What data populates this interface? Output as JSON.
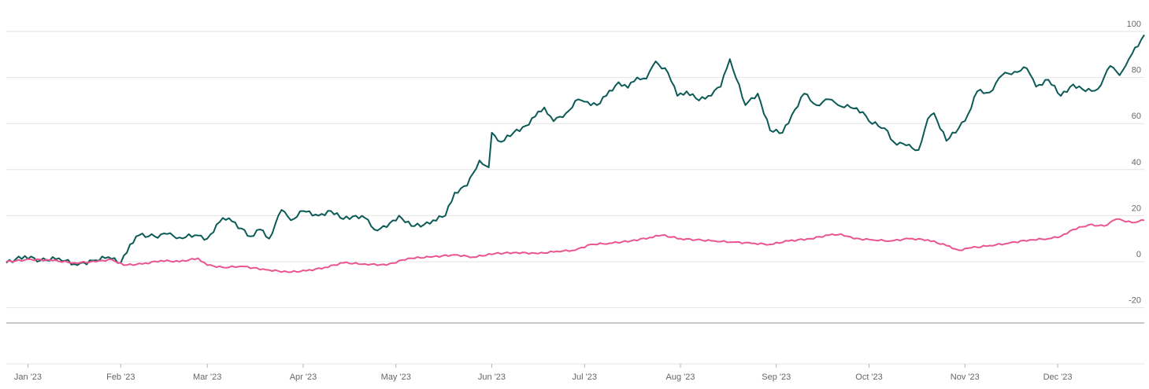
{
  "chart_data": {
    "type": "line",
    "title": "",
    "xlabel": "",
    "ylabel": "",
    "ylim": [
      -20,
      100
    ],
    "yticks": [
      100,
      80,
      60,
      40,
      20,
      0,
      -20
    ],
    "grid": true,
    "legend": "none",
    "x_tick_labels": [
      "Jan '23",
      "Feb '23",
      "Mar '23",
      "Apr '23",
      "May '23",
      "Jun '23",
      "Jul '23",
      "Aug '23",
      "Sep '23",
      "Oct '23",
      "Nov '23",
      "Dec '23"
    ],
    "x_tick_dates": [
      "2023-01-02",
      "2023-02-01",
      "2023-03-01",
      "2023-04-01",
      "2023-05-01",
      "2023-06-01",
      "2023-07-01",
      "2023-08-01",
      "2023-09-01",
      "2023-10-01",
      "2023-11-01",
      "2023-12-01"
    ],
    "x_range": [
      "2022-12-26",
      "2023-12-29"
    ],
    "series": [
      {
        "color": "#0b5a55",
        "points": [
          [
            "2022-12-26",
            -0.5
          ],
          [
            "2023-01-01",
            2.5
          ],
          [
            "2023-01-06",
            0.5
          ],
          [
            "2023-01-12",
            1.5
          ],
          [
            "2023-01-18",
            -1.5
          ],
          [
            "2023-01-23",
            0.5
          ],
          [
            "2023-01-28",
            2
          ],
          [
            "2023-02-01",
            -0.5
          ],
          [
            "2023-02-04",
            7.5
          ],
          [
            "2023-02-07",
            11.5
          ],
          [
            "2023-02-12",
            11
          ],
          [
            "2023-02-16",
            12
          ],
          [
            "2023-02-20",
            10.5
          ],
          [
            "2023-02-25",
            11.5
          ],
          [
            "2023-03-01",
            10
          ],
          [
            "2023-03-06",
            19
          ],
          [
            "2023-03-09",
            17.5
          ],
          [
            "2023-03-15",
            11
          ],
          [
            "2023-03-18",
            14
          ],
          [
            "2023-03-21",
            10
          ],
          [
            "2023-03-25",
            22.5
          ],
          [
            "2023-03-28",
            18
          ],
          [
            "2023-04-01",
            22
          ],
          [
            "2023-04-06",
            20
          ],
          [
            "2023-04-10",
            22
          ],
          [
            "2023-04-14",
            18.5
          ],
          [
            "2023-04-18",
            20
          ],
          [
            "2023-04-21",
            19
          ],
          [
            "2023-04-24",
            14
          ],
          [
            "2023-04-28",
            15
          ],
          [
            "2023-05-02",
            20
          ],
          [
            "2023-05-06",
            15.5
          ],
          [
            "2023-05-10",
            16
          ],
          [
            "2023-05-13",
            18
          ],
          [
            "2023-05-17",
            20
          ],
          [
            "2023-05-20",
            30
          ],
          [
            "2023-05-24",
            33
          ],
          [
            "2023-05-28",
            44
          ],
          [
            "2023-05-31",
            41
          ],
          [
            "2023-06-01",
            56
          ],
          [
            "2023-06-04",
            52
          ],
          [
            "2023-06-08",
            56
          ],
          [
            "2023-06-12",
            59
          ],
          [
            "2023-06-15",
            63
          ],
          [
            "2023-06-18",
            67
          ],
          [
            "2023-06-21",
            61
          ],
          [
            "2023-06-25",
            64.5
          ],
          [
            "2023-06-29",
            70.5
          ],
          [
            "2023-07-01",
            69.5
          ],
          [
            "2023-07-05",
            68
          ],
          [
            "2023-07-08",
            72
          ],
          [
            "2023-07-12",
            78
          ],
          [
            "2023-07-15",
            75.5
          ],
          [
            "2023-07-18",
            80
          ],
          [
            "2023-07-21",
            79.5
          ],
          [
            "2023-07-24",
            87
          ],
          [
            "2023-07-28",
            82
          ],
          [
            "2023-07-31",
            72
          ],
          [
            "2023-08-03",
            74
          ],
          [
            "2023-08-07",
            70
          ],
          [
            "2023-08-10",
            72
          ],
          [
            "2023-08-14",
            76
          ],
          [
            "2023-08-17",
            88
          ],
          [
            "2023-08-22",
            68
          ],
          [
            "2023-08-26",
            73
          ],
          [
            "2023-08-30",
            57
          ],
          [
            "2023-09-03",
            56
          ],
          [
            "2023-09-07",
            66
          ],
          [
            "2023-09-10",
            73
          ],
          [
            "2023-09-14",
            68
          ],
          [
            "2023-09-18",
            70.5
          ],
          [
            "2023-09-21",
            68
          ],
          [
            "2023-09-25",
            67
          ],
          [
            "2023-09-29",
            65
          ],
          [
            "2023-10-01",
            61
          ],
          [
            "2023-10-06",
            58
          ],
          [
            "2023-10-09",
            52
          ],
          [
            "2023-10-13",
            50.5
          ],
          [
            "2023-10-17",
            48.5
          ],
          [
            "2023-10-20",
            62
          ],
          [
            "2023-10-22",
            64.5
          ],
          [
            "2023-10-26",
            52.5
          ],
          [
            "2023-10-30",
            58
          ],
          [
            "2023-11-02",
            64
          ],
          [
            "2023-11-05",
            74
          ],
          [
            "2023-11-09",
            73.5
          ],
          [
            "2023-11-13",
            81
          ],
          [
            "2023-11-17",
            82.5
          ],
          [
            "2023-11-21",
            84
          ],
          [
            "2023-11-24",
            76
          ],
          [
            "2023-11-28",
            79
          ],
          [
            "2023-12-02",
            72
          ],
          [
            "2023-12-06",
            77
          ],
          [
            "2023-12-10",
            74
          ],
          [
            "2023-12-14",
            75
          ],
          [
            "2023-12-18",
            85
          ],
          [
            "2023-12-21",
            81
          ],
          [
            "2023-12-24",
            88
          ],
          [
            "2023-12-29",
            98.5
          ]
        ]
      },
      {
        "color": "#e8558f",
        "points": [
          [
            "2022-12-26",
            0
          ],
          [
            "2023-01-03",
            1
          ],
          [
            "2023-01-10",
            0.5
          ],
          [
            "2023-01-17",
            -0.5
          ],
          [
            "2023-01-24",
            0
          ],
          [
            "2023-01-29",
            1
          ],
          [
            "2023-02-02",
            -1.5
          ],
          [
            "2023-02-08",
            -1
          ],
          [
            "2023-02-14",
            0.5
          ],
          [
            "2023-02-20",
            0
          ],
          [
            "2023-02-26",
            1.5
          ],
          [
            "2023-03-01",
            -1.5
          ],
          [
            "2023-03-06",
            -2.5
          ],
          [
            "2023-03-12",
            -2
          ],
          [
            "2023-03-20",
            -3.5
          ],
          [
            "2023-03-27",
            -4.5
          ],
          [
            "2023-04-02",
            -4
          ],
          [
            "2023-04-08",
            -2.5
          ],
          [
            "2023-04-14",
            -0.5
          ],
          [
            "2023-04-21",
            -1
          ],
          [
            "2023-04-28",
            -1.5
          ],
          [
            "2023-05-05",
            1.5
          ],
          [
            "2023-05-12",
            2
          ],
          [
            "2023-05-20",
            3
          ],
          [
            "2023-05-26",
            2
          ],
          [
            "2023-06-02",
            3.5
          ],
          [
            "2023-06-09",
            4
          ],
          [
            "2023-06-16",
            3.5
          ],
          [
            "2023-06-22",
            4.5
          ],
          [
            "2023-06-28",
            5
          ],
          [
            "2023-07-03",
            7.5
          ],
          [
            "2023-07-09",
            8
          ],
          [
            "2023-07-16",
            9
          ],
          [
            "2023-07-22",
            10.5
          ],
          [
            "2023-07-26",
            11.5
          ],
          [
            "2023-08-01",
            10
          ],
          [
            "2023-08-06",
            9.5
          ],
          [
            "2023-08-12",
            9
          ],
          [
            "2023-08-18",
            8.5
          ],
          [
            "2023-08-24",
            8
          ],
          [
            "2023-08-30",
            7.5
          ],
          [
            "2023-09-05",
            9
          ],
          [
            "2023-09-12",
            10
          ],
          [
            "2023-09-18",
            11.5
          ],
          [
            "2023-09-22",
            12
          ],
          [
            "2023-09-26",
            10
          ],
          [
            "2023-10-02",
            9.5
          ],
          [
            "2023-10-08",
            9
          ],
          [
            "2023-10-14",
            10
          ],
          [
            "2023-10-20",
            9.5
          ],
          [
            "2023-10-26",
            7
          ],
          [
            "2023-10-30",
            5
          ],
          [
            "2023-11-03",
            6
          ],
          [
            "2023-11-09",
            7
          ],
          [
            "2023-11-15",
            8
          ],
          [
            "2023-11-22",
            9.5
          ],
          [
            "2023-11-28",
            10
          ],
          [
            "2023-12-02",
            11
          ],
          [
            "2023-12-06",
            14
          ],
          [
            "2023-12-11",
            16
          ],
          [
            "2023-12-16",
            15.5
          ],
          [
            "2023-12-20",
            18.5
          ],
          [
            "2023-12-25",
            17
          ],
          [
            "2023-12-29",
            18
          ]
        ]
      }
    ]
  },
  "colors": {
    "grid": "#e3e3e3",
    "axis_line": "#b5b5b5",
    "tick_text": "#666666"
  }
}
